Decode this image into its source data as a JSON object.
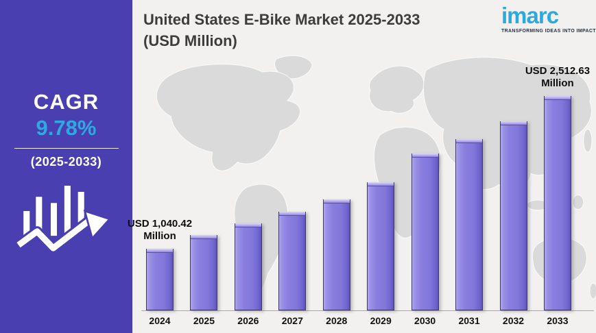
{
  "sidebar": {
    "cagr_label": "CAGR",
    "cagr_value": "9.78%",
    "period": "(2025-2033)",
    "bg_color": "#4a3fb0",
    "accent_color": "#2fa9e1",
    "icon": "bar-chart-with-up-arrow"
  },
  "header": {
    "title_line1": "United States E-Bike Market 2025-2033",
    "title_line2": "(USD Million)"
  },
  "logo": {
    "name": "imarc",
    "tagline": "TRANSFORMING IDEAS INTO IMPACT",
    "color": "#29abe2"
  },
  "chart_data": {
    "type": "bar",
    "title": "United States E-Bike Market 2025-2033 (USD Million)",
    "unit": "USD Million",
    "categories": [
      "2024",
      "2025",
      "2026",
      "2027",
      "2028",
      "2029",
      "2030",
      "2031",
      "2032",
      "2033"
    ],
    "values": [
      1040.42,
      1172,
      1285,
      1397,
      1516,
      1681,
      1958,
      2097,
      2268,
      2512.63
    ],
    "labeled_values": {
      "2024": "USD 1,040.42 Million",
      "2033": "USD 2,512.63 Million"
    },
    "annotations": [
      {
        "index": 0,
        "line1": "USD 1,040.42",
        "line2": "Million"
      },
      {
        "index": 9,
        "line1": "USD 2,512.63",
        "line2": "Million"
      }
    ],
    "bar_color": "#8176da",
    "background_map": "world-map",
    "grid": false,
    "legend": false,
    "ylim": [
      0,
      2700
    ]
  }
}
